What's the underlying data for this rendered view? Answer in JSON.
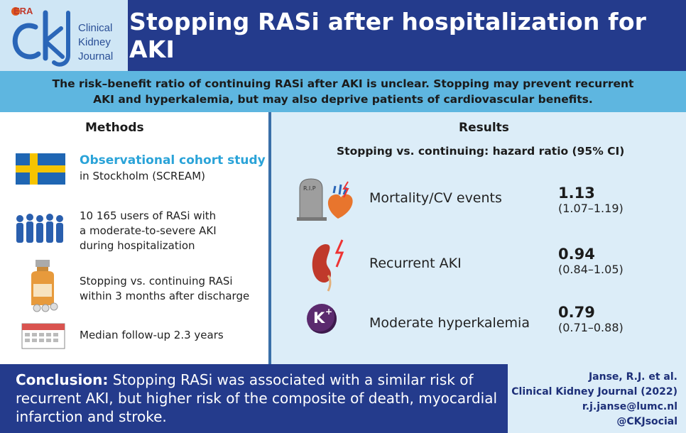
{
  "logo": {
    "org": "ERA",
    "monogram": "ckj",
    "line1": "Clinical",
    "line2": "Kidney",
    "line3": "Journal"
  },
  "title": "Stopping RASi after hospitalization for AKI",
  "subtitle": {
    "line1": "The risk–benefit ratio of continuing RASi after AKI is unclear. Stopping may prevent recurrent",
    "line2": "AKI and hyperkalemia, but may also deprive patients of cardiovascular benefits."
  },
  "methods": {
    "heading": "Methods",
    "items": [
      {
        "icon": "sweden-flag-icon",
        "accent": "Observational cohort study",
        "line1": "in Stockholm (SCREAM)"
      },
      {
        "icon": "people-group-icon",
        "line1": "10 165 users of RASi with",
        "line2": "a moderate-to-severe AKI",
        "line3": "during hospitalization"
      },
      {
        "icon": "medicine-bottle-icon",
        "line1": "Stopping vs. continuing RASi",
        "line2": "within 3 months after discharge"
      },
      {
        "icon": "calendar-icon",
        "line1": "Median follow-up 2.3 years"
      }
    ]
  },
  "results": {
    "heading": "Results",
    "subheading": "Stopping vs. continuing: hazard ratio (95% CI)",
    "tombstone_text": "R.I.P",
    "potassium_symbol": "K",
    "potassium_charge": "+",
    "outcomes": [
      {
        "label": "Mortality/CV events",
        "hr": "1.13",
        "ci": "(1.07–1.19)",
        "icon": "tombstone-heart-icon"
      },
      {
        "label": "Recurrent AKI",
        "hr": "0.94",
        "ci": "(0.84–1.05)",
        "icon": "kidney-lightning-icon"
      },
      {
        "label": "Moderate hyperkalemia",
        "hr": "0.79",
        "ci": "(0.71–0.88)",
        "icon": "potassium-icon"
      }
    ]
  },
  "conclusion": {
    "lead": "Conclusion:",
    "text": " Stopping RASi was associated with a similar risk of recurrent AKI, but higher risk of the composite of death, myocardial infarction and stroke."
  },
  "citation": {
    "authors": "Janse, R.J. et al.",
    "journal": "Clinical Kidney Journal (2022)",
    "email": "r.j.janse@lumc.nl",
    "social": "@CKJsocial"
  },
  "colors": {
    "navy": "#243b8c",
    "sky": "#5eb6e0",
    "pale": "#dcedf8",
    "accent": "#2aa3d8"
  }
}
